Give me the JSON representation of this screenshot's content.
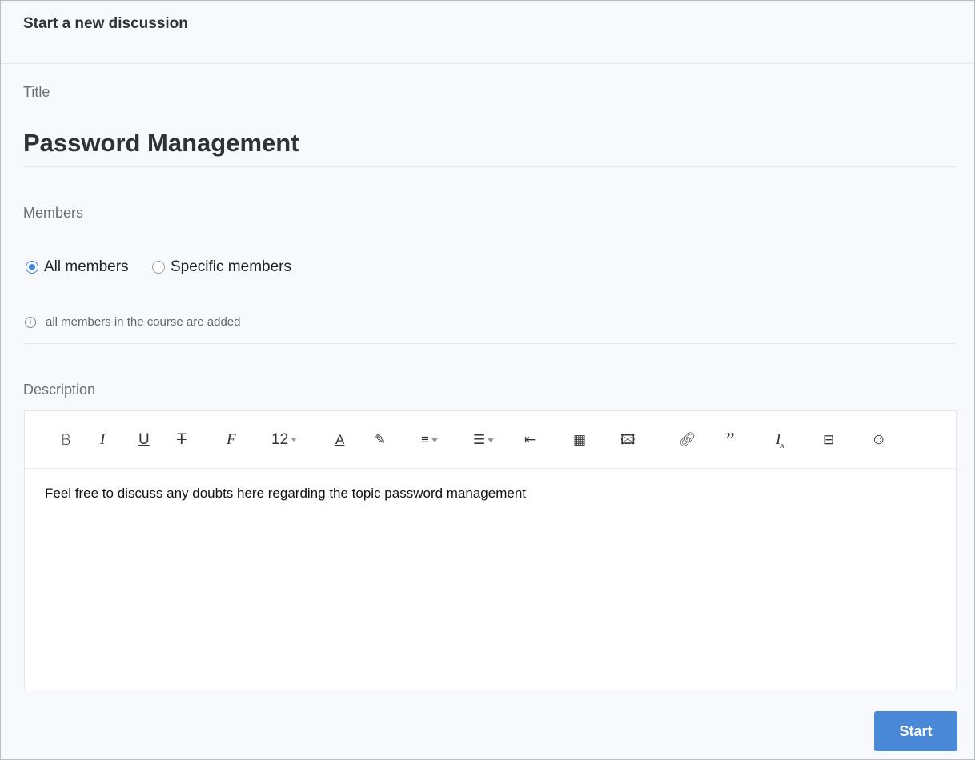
{
  "header": {
    "title": "Start a new discussion"
  },
  "form": {
    "title_label": "Title",
    "title_value": "Password Management",
    "members_label": "Members",
    "members_options": [
      {
        "label": "All members",
        "selected": true
      },
      {
        "label": "Specific members",
        "selected": false
      }
    ],
    "members_info": "all members in the course are added",
    "description_label": "Description"
  },
  "editor": {
    "font_size": "12",
    "toolbar_icons": [
      "bold",
      "italic",
      "underline",
      "strikethrough",
      "font-family",
      "font-size",
      "text-color",
      "highlight",
      "align",
      "ordered-list",
      "indent",
      "table",
      "image",
      "link",
      "quote",
      "clear-format",
      "horizontal-rule",
      "emoji"
    ],
    "content": "Feel free to discuss any doubts here regarding the topic password management"
  },
  "actions": {
    "start_label": "Start"
  },
  "colors": {
    "accent": "#4a88d8",
    "background": "#f8f9fc"
  }
}
